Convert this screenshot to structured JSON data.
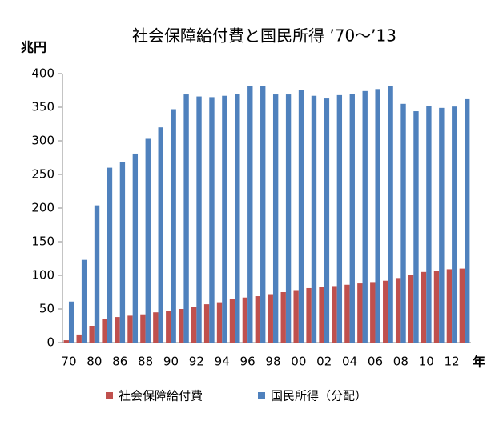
{
  "chart_data": {
    "type": "bar",
    "title": "社会保障給付費と国民所得 ’70～’13",
    "y_unit": "兆円",
    "x_unit": "年",
    "categories": [
      "70",
      null,
      "80",
      null,
      "86",
      null,
      "88",
      null,
      "90",
      null,
      "92",
      null,
      "94",
      null,
      "96",
      null,
      "98",
      null,
      "00",
      null,
      "02",
      null,
      "04",
      null,
      "06",
      null,
      "08",
      null,
      "10",
      null,
      "12",
      null
    ],
    "series": [
      {
        "name": "社会保障給付費",
        "color": "#c0504d",
        "values": [
          3.5,
          12,
          25,
          35,
          38,
          40,
          42,
          45,
          47,
          50,
          53,
          57,
          60,
          65,
          67,
          69,
          72,
          75,
          78,
          81,
          83,
          84,
          86,
          88,
          90,
          92,
          96,
          100,
          105,
          107,
          109,
          110
        ]
      },
      {
        "name": "国民所得（分配）",
        "color": "#4f81bd",
        "values": [
          61,
          123,
          204,
          260,
          268,
          281,
          303,
          320,
          347,
          369,
          366,
          365,
          367,
          370,
          381,
          382,
          369,
          369,
          375,
          367,
          363,
          368,
          370,
          374,
          377,
          381,
          355,
          344,
          352,
          349,
          351,
          362
        ]
      }
    ],
    "ylim": [
      0,
      400
    ],
    "yticks": [
      0,
      50,
      100,
      150,
      200,
      250,
      300,
      350,
      400
    ]
  }
}
